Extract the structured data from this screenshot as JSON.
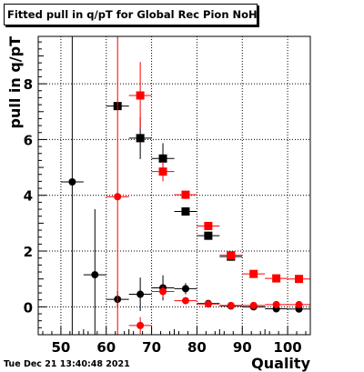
{
  "timestamp": "Tue Dec 21 13:40:48 2021",
  "chart_data": {
    "type": "scatter",
    "title": "Fitted pull in q/pT for Global Rec Pion NoHits",
    "xlabel": "Quality",
    "ylabel": "pull in q/pT",
    "xlim": [
      45,
      105
    ],
    "ylim": [
      -1,
      9.7
    ],
    "xticks": [
      50,
      60,
      70,
      80,
      90,
      100
    ],
    "yticks": [
      0,
      2,
      4,
      6,
      8
    ],
    "grid": true,
    "series": [
      {
        "marker": "circle",
        "color": "#000000",
        "points": [
          {
            "x": 52.5,
            "y": 4.48,
            "xerr": 2.5,
            "yerr": 10
          },
          {
            "x": 57.5,
            "y": 1.15,
            "xerr": 2.5,
            "yerr": 2.35
          },
          {
            "x": 62.5,
            "y": 0.27,
            "xerr": 2.5,
            "yerr": 0.3
          },
          {
            "x": 67.5,
            "y": 0.45,
            "xerr": 2.5,
            "yerr": 0.6
          },
          {
            "x": 72.5,
            "y": 0.68,
            "xerr": 2.5,
            "yerr": 0.45
          },
          {
            "x": 77.5,
            "y": 0.65,
            "xerr": 2.5,
            "yerr": 0.2
          },
          {
            "x": 82.5,
            "y": 0.12,
            "xerr": 2.5,
            "yerr": 0.1
          },
          {
            "x": 87.5,
            "y": 0.03,
            "xerr": 2.5,
            "yerr": 0.06
          },
          {
            "x": 92.5,
            "y": 0.0,
            "xerr": 2.5,
            "yerr": 0.05
          },
          {
            "x": 97.5,
            "y": -0.07,
            "xerr": 2.5,
            "yerr": 0.05
          },
          {
            "x": 102.5,
            "y": -0.08,
            "xerr": 2.5,
            "yerr": 0.05
          }
        ]
      },
      {
        "marker": "square",
        "color": "#000000",
        "points": [
          {
            "x": 62.5,
            "y": 7.2,
            "xerr": 2.5,
            "yerr": 0.0
          },
          {
            "x": 67.5,
            "y": 6.05,
            "xerr": 2.5,
            "yerr": 0.75
          },
          {
            "x": 72.5,
            "y": 5.32,
            "xerr": 2.5,
            "yerr": 0.55
          },
          {
            "x": 77.5,
            "y": 3.42,
            "xerr": 2.5,
            "yerr": 0.15
          },
          {
            "x": 82.5,
            "y": 2.55,
            "xerr": 2.5,
            "yerr": 0.08
          },
          {
            "x": 87.5,
            "y": 1.8,
            "xerr": 2.5,
            "yerr": 0.05
          }
        ]
      },
      {
        "marker": "circle",
        "color": "#ff0000",
        "points": [
          {
            "x": 62.5,
            "y": 3.95,
            "xerr": 2.5,
            "yerr": 10
          },
          {
            "x": 67.5,
            "y": -0.67,
            "xerr": 2.5,
            "yerr": 0.3
          },
          {
            "x": 72.5,
            "y": 0.55,
            "xerr": 2.5,
            "yerr": 0.2
          },
          {
            "x": 77.5,
            "y": 0.22,
            "xerr": 2.5,
            "yerr": 0.1
          },
          {
            "x": 82.5,
            "y": 0.1,
            "xerr": 2.5,
            "yerr": 0.06
          },
          {
            "x": 87.5,
            "y": 0.05,
            "xerr": 2.5,
            "yerr": 0.04
          },
          {
            "x": 92.5,
            "y": 0.05,
            "xerr": 2.5,
            "yerr": 0.03
          },
          {
            "x": 97.5,
            "y": 0.08,
            "xerr": 2.5,
            "yerr": 0.03
          },
          {
            "x": 102.5,
            "y": 0.08,
            "xerr": 2.5,
            "yerr": 0.03
          }
        ]
      },
      {
        "marker": "square",
        "color": "#ff0000",
        "points": [
          {
            "x": 67.5,
            "y": 7.58,
            "xerr": 2.5,
            "yerr": 1.2
          },
          {
            "x": 72.5,
            "y": 4.85,
            "xerr": 2.5,
            "yerr": 0.35
          },
          {
            "x": 77.5,
            "y": 4.02,
            "xerr": 2.5,
            "yerr": 0.15
          },
          {
            "x": 82.5,
            "y": 2.9,
            "xerr": 2.5,
            "yerr": 0.1
          },
          {
            "x": 87.5,
            "y": 1.85,
            "xerr": 2.5,
            "yerr": 0.06
          },
          {
            "x": 92.5,
            "y": 1.18,
            "xerr": 2.5,
            "yerr": 0.04
          },
          {
            "x": 97.5,
            "y": 1.02,
            "xerr": 2.5,
            "yerr": 0.04
          },
          {
            "x": 102.5,
            "y": 1.0,
            "xerr": 2.5,
            "yerr": 0.04
          }
        ]
      }
    ]
  }
}
